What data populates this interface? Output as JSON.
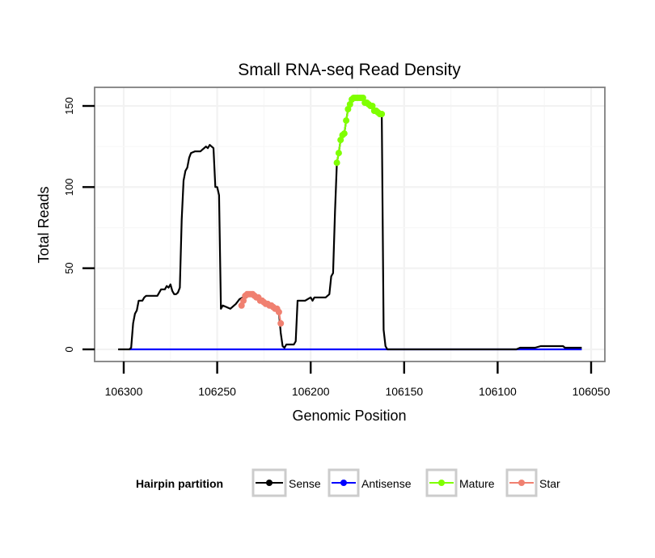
{
  "chart_data": {
    "type": "line",
    "title": "Small RNA-seq Read Density",
    "xlabel": "Genomic Position",
    "ylabel": "Total Reads",
    "xlim": [
      106300,
      106050
    ],
    "ylim": [
      0,
      160
    ],
    "x_ticks": [
      106300,
      106250,
      106200,
      106150,
      106100,
      106050
    ],
    "x_tick_labels": [
      "106300",
      "106250",
      "106200",
      "106150",
      "106100",
      "106050"
    ],
    "y_ticks": [
      0,
      50,
      100,
      150
    ],
    "y_tick_labels": [
      "0",
      "50",
      "100",
      "150"
    ],
    "grid": true,
    "legend": {
      "title": "Hairpin partition",
      "placement": "bottom",
      "entries": [
        {
          "name": "Sense",
          "color": "#000000"
        },
        {
          "name": "Antisense",
          "color": "#0000ff"
        },
        {
          "name": "Mature",
          "color": "#7fff00"
        },
        {
          "name": "Star",
          "color": "#f08070"
        }
      ]
    },
    "series": [
      {
        "name": "Sense",
        "color": "#000000",
        "points": [
          [
            106303,
            0
          ],
          [
            106297,
            0
          ],
          [
            106296,
            1
          ],
          [
            106295,
            16
          ],
          [
            106294,
            22
          ],
          [
            106293,
            24
          ],
          [
            106292,
            30
          ],
          [
            106291,
            30
          ],
          [
            106290,
            30
          ],
          [
            106289,
            32
          ],
          [
            106288,
            33
          ],
          [
            106287,
            33
          ],
          [
            106285,
            33
          ],
          [
            106282,
            33
          ],
          [
            106281,
            35
          ],
          [
            106280,
            37
          ],
          [
            106278,
            37
          ],
          [
            106277,
            39
          ],
          [
            106276,
            38
          ],
          [
            106275,
            40
          ],
          [
            106274,
            36
          ],
          [
            106273,
            34
          ],
          [
            106272,
            34
          ],
          [
            106271,
            35
          ],
          [
            106270,
            38
          ],
          [
            106269,
            80
          ],
          [
            106268,
            104
          ],
          [
            106267,
            110
          ],
          [
            106266,
            112
          ],
          [
            106265,
            118
          ],
          [
            106264,
            121
          ],
          [
            106262,
            122
          ],
          [
            106259,
            122
          ],
          [
            106256,
            125
          ],
          [
            106255,
            124
          ],
          [
            106254,
            126
          ],
          [
            106252,
            124
          ],
          [
            106251,
            100
          ],
          [
            106250,
            100
          ],
          [
            106249,
            95
          ],
          [
            106248,
            25
          ],
          [
            106247,
            27
          ],
          [
            106245,
            26
          ],
          [
            106243,
            25
          ],
          [
            106242,
            26
          ],
          [
            106240,
            28
          ],
          [
            106238,
            31
          ],
          [
            106233,
            34
          ],
          [
            106228,
            32
          ],
          [
            106224,
            28
          ],
          [
            106218,
            25
          ],
          [
            106217,
            23
          ],
          [
            106216,
            10
          ],
          [
            106215,
            2
          ],
          [
            106214,
            1
          ],
          [
            106213,
            3
          ],
          [
            106212,
            3
          ],
          [
            106211,
            3
          ],
          [
            106209,
            3
          ],
          [
            106208,
            5
          ],
          [
            106207,
            30
          ],
          [
            106206,
            30
          ],
          [
            106203,
            30
          ],
          [
            106200,
            32
          ],
          [
            106199,
            30
          ],
          [
            106198,
            32
          ],
          [
            106196,
            32
          ],
          [
            106192,
            32
          ],
          [
            106191,
            33
          ],
          [
            106190,
            34
          ],
          [
            106189,
            45
          ],
          [
            106188,
            47
          ],
          [
            106187,
            85
          ],
          [
            106186,
            115
          ],
          [
            106185,
            121
          ],
          [
            106184,
            129
          ],
          [
            106183,
            132
          ],
          [
            106182,
            133
          ],
          [
            106181,
            141
          ],
          [
            106180,
            148
          ],
          [
            106179,
            151
          ],
          [
            106178,
            154
          ],
          [
            106176,
            155
          ],
          [
            106172,
            155
          ],
          [
            106170,
            152
          ],
          [
            106168,
            150
          ],
          [
            106166,
            147
          ],
          [
            106165,
            147
          ],
          [
            106164,
            145
          ],
          [
            106163,
            145
          ],
          [
            106162,
            145
          ],
          [
            106161,
            12
          ],
          [
            106160,
            2
          ],
          [
            106159,
            0
          ],
          [
            106148,
            0
          ],
          [
            106110,
            0
          ],
          [
            106090,
            0
          ],
          [
            106088,
            1
          ],
          [
            106080,
            1
          ],
          [
            106077,
            2
          ],
          [
            106065,
            2
          ],
          [
            106064,
            1
          ],
          [
            106061,
            1
          ],
          [
            106055,
            1
          ]
        ]
      },
      {
        "name": "Antisense",
        "color": "#0000ff",
        "points": [
          [
            106297,
            0
          ],
          [
            106055,
            0
          ]
        ]
      },
      {
        "name": "Mature",
        "color": "#7fff00",
        "points": [
          [
            106186,
            115
          ],
          [
            106185,
            121
          ],
          [
            106184,
            129
          ],
          [
            106183,
            132
          ],
          [
            106182,
            133
          ],
          [
            106181,
            141
          ],
          [
            106180,
            148
          ],
          [
            106179,
            151
          ],
          [
            106178,
            154
          ],
          [
            106177,
            155
          ],
          [
            106176,
            155
          ],
          [
            106175,
            155
          ],
          [
            106174,
            155
          ],
          [
            106173,
            155
          ],
          [
            106172,
            155
          ],
          [
            106171,
            152
          ],
          [
            106170,
            152
          ],
          [
            106169,
            151
          ],
          [
            106168,
            150
          ],
          [
            106167,
            150
          ],
          [
            106166,
            147
          ],
          [
            106165,
            147
          ],
          [
            106164,
            146
          ],
          [
            106163,
            145
          ],
          [
            106162,
            145
          ]
        ]
      },
      {
        "name": "Star",
        "color": "#f08070",
        "points": [
          [
            106237,
            27
          ],
          [
            106236,
            30
          ],
          [
            106235,
            33
          ],
          [
            106234,
            34
          ],
          [
            106233,
            34
          ],
          [
            106232,
            34
          ],
          [
            106231,
            34
          ],
          [
            106230,
            33
          ],
          [
            106229,
            32
          ],
          [
            106228,
            32
          ],
          [
            106227,
            30
          ],
          [
            106226,
            30
          ],
          [
            106225,
            29
          ],
          [
            106224,
            28
          ],
          [
            106223,
            28
          ],
          [
            106222,
            27
          ],
          [
            106221,
            27
          ],
          [
            106220,
            26
          ],
          [
            106219,
            25
          ],
          [
            106218,
            25
          ],
          [
            106217,
            23
          ],
          [
            106216,
            16
          ]
        ]
      }
    ]
  }
}
